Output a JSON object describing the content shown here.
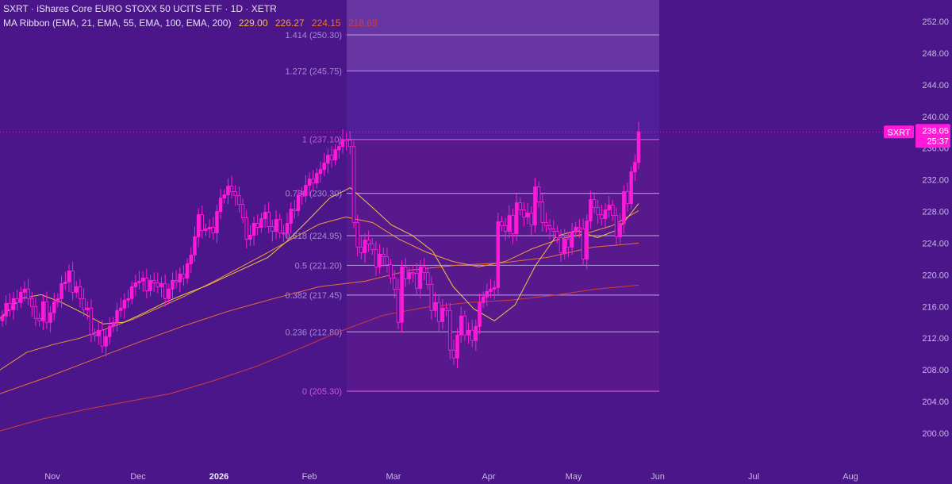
{
  "legend": {
    "title": "SXRT · iShares Core EURO STOXX 50 UCITS ETF · 1D · XETR",
    "ribbon_label": "MA Ribbon (EMA, 21, EMA, 55, EMA, 100, EMA, 200)",
    "ribbon_values": [
      "229.00",
      "226.27",
      "224.15",
      "218.69"
    ],
    "ribbon_colors": [
      "#f5c542",
      "#f09a3c",
      "#e8703a",
      "#d33b3b"
    ]
  },
  "colors": {
    "background": "#4a1689",
    "fib_zone_lower": "#5a1a8e",
    "fib_zone_upper": "#6a3aa6",
    "candle": "#ff1ad9",
    "fib_line": "#a98ad6",
    "fib_edge": "#c040d0",
    "price_tag": "#ff1ad9",
    "axis_text": "#c9b6e8"
  },
  "chart_data": {
    "type": "candlestick",
    "symbol": "SXRT",
    "price_axis": {
      "ylim": [
        197.0,
        253.5
      ],
      "ticks": [
        "252.00",
        "248.00",
        "244.00",
        "240.00",
        "236.00",
        "232.00",
        "228.00",
        "224.00",
        "220.00",
        "216.00",
        "212.00",
        "208.00",
        "204.00",
        "200.00"
      ]
    },
    "time_axis": {
      "labels": [
        "Nov",
        "Dec",
        "2026",
        "Feb",
        "Mar",
        "Apr",
        "May",
        "Jun",
        "Jul",
        "Aug"
      ],
      "bold_label": "2026"
    },
    "last_price": {
      "label": "SXRT",
      "value": "238.05",
      "countdown": "25:37",
      "price": 238.05
    },
    "fib_levels": [
      {
        "level": 0,
        "price": 205.3,
        "label": "0 (205.30)"
      },
      {
        "level": 0.236,
        "price": 212.8,
        "label": "0.236 (212.80)"
      },
      {
        "level": 0.382,
        "price": 217.45,
        "label": "0.382 (217.45)"
      },
      {
        "level": 0.5,
        "price": 221.2,
        "label": "0.5 (221.20)"
      },
      {
        "level": 0.618,
        "price": 224.95,
        "label": "0.618 (224.95)"
      },
      {
        "level": 0.786,
        "price": 230.3,
        "label": "0.786 (230.30)"
      },
      {
        "level": 1,
        "price": 237.1,
        "label": "1 (237.10)"
      },
      {
        "level": 1.272,
        "price": 245.75,
        "label": "1.272 (245.75)"
      },
      {
        "level": 1.414,
        "price": 250.3,
        "label": "1.414 (250.30)"
      }
    ],
    "candles_close": [
      214.8,
      216.4,
      215.6,
      217.0,
      216.5,
      217.8,
      218.2,
      217.0,
      216.0,
      214.5,
      214.2,
      216.6,
      214.0,
      215.2,
      216.6,
      217.0,
      218.9,
      219.1,
      220.5,
      217.8,
      218.5,
      217.0,
      215.6,
      215.8,
      212.5,
      212.3,
      213.0,
      211.0,
      212.2,
      213.5,
      214.0,
      215.5,
      215.8,
      216.8,
      217.0,
      218.5,
      219.0,
      219.2,
      219.6,
      218.0,
      219.3,
      219.0,
      218.5,
      218.9,
      217.0,
      218.2,
      219.3,
      219.1,
      220.1,
      219.6,
      221.4,
      222.5,
      224.8,
      227.6,
      225.6,
      225.8,
      226.0,
      225.3,
      228.0,
      229.7,
      230.1,
      231.2,
      230.5,
      230.0,
      228.9,
      227.2,
      224.5,
      225.0,
      226.5,
      226.0,
      227.1,
      227.9,
      226.1,
      225.5,
      227.0,
      225.3,
      225.3,
      226.5,
      228.3,
      228.1,
      230.1,
      230.0,
      231.3,
      232.1,
      231.6,
      232.8,
      233.3,
      234.1,
      235.1,
      234.5,
      235.8,
      236.2,
      237.1,
      237.0,
      236.2,
      226.6,
      223.5,
      222.8,
      224.4,
      223.9,
      223.2,
      221.0,
      222.6,
      222.3,
      221.3,
      219.6,
      218.2,
      214.0,
      221.0,
      219.5,
      220.3,
      220.2,
      218.3,
      221.0,
      220.3,
      218.8,
      215.5,
      216.5,
      214.1,
      215.8,
      215.5,
      210.5,
      209.5,
      212.4,
      214.8,
      212.4,
      213.0,
      211.7,
      213.5,
      216.5,
      217.2,
      217.9,
      218.2,
      218.4,
      226.7,
      226.2,
      225.5,
      227.5,
      225.2,
      229.1,
      228.2,
      227.3,
      227.8,
      226.3,
      231.1,
      229.2,
      226.6,
      226.2,
      225.8,
      225.5,
      224.7,
      222.8,
      224.5,
      223.5,
      225.4,
      226.0,
      225.8,
      222.0,
      226.8,
      229.5,
      228.5,
      227.6,
      227.1,
      228.2,
      228.8,
      227.5,
      224.8,
      226.5,
      230.5,
      229.0,
      233.0,
      234.2,
      238.05
    ],
    "ema_21": [
      214.5,
      217.0,
      217.5,
      216.5,
      215.2,
      213.8,
      214.0,
      215.2,
      216.5,
      217.6,
      218.6,
      219.8,
      221.0,
      222.2,
      224.4,
      227.0,
      229.7,
      231.0,
      228.7,
      226.3,
      225.0,
      223.0,
      218.5,
      215.7,
      214.2,
      216.2,
      221.2,
      224.9,
      225.6,
      224.7,
      225.7,
      229.0
    ],
    "ema_55": [
      208.0,
      210.2,
      211.2,
      212.0,
      213.2,
      214.4,
      215.9,
      217.4,
      219.1,
      220.9,
      222.7,
      224.6,
      226.4,
      227.3,
      226.6,
      224.5,
      222.9,
      221.7,
      221.0,
      221.7,
      223.3,
      224.5,
      225.2,
      226.2,
      228.1
    ],
    "ema_100": [
      205.0,
      207.0,
      209.2,
      211.4,
      213.5,
      215.4,
      217.0,
      218.5,
      219.2,
      220.6,
      221.2,
      221.5,
      222.2,
      223.5,
      224.0
    ],
    "ema_200": [
      200.3,
      201.8,
      203.0,
      204.0,
      205.0,
      206.6,
      208.4,
      210.6,
      212.9,
      214.9,
      215.9,
      216.5,
      216.8,
      217.4,
      218.2,
      218.7
    ]
  }
}
